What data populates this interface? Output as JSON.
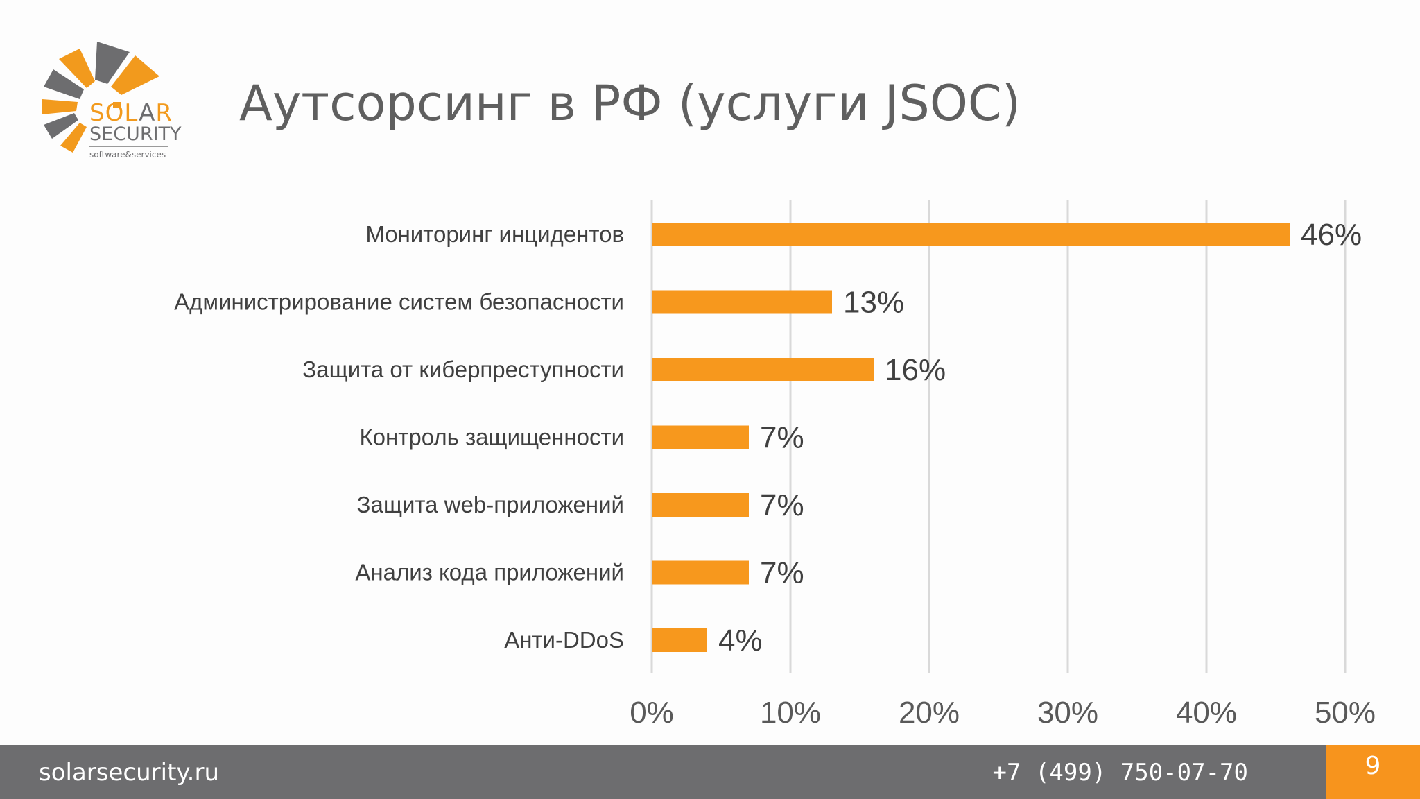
{
  "header": {
    "logo": {
      "text_solar": "SOL",
      "text_a": "A",
      "text_r": "R",
      "text_security": "SECURITY",
      "tagline": "software&services",
      "colors": {
        "orange": "#f29a1d",
        "gray": "#6d6d6f"
      }
    },
    "title": "Аутсорсинг в РФ (услуги JSOC)"
  },
  "chart_data": {
    "type": "bar",
    "orientation": "horizontal",
    "categories": [
      "Мониторинг инцидентов",
      "Администрирование систем безопасности",
      "Защита от киберпреступности",
      "Контроль защищенности",
      "Защита web-приложений",
      "Анализ кода приложений",
      "Анти-DDoS"
    ],
    "values": [
      46,
      13,
      16,
      7,
      7,
      7,
      4
    ],
    "data_labels": [
      "46%",
      "13%",
      "16%",
      "7%",
      "7%",
      "7%",
      "4%"
    ],
    "xticks": [
      "0%",
      "10%",
      "20%",
      "30%",
      "40%",
      "50%"
    ],
    "xlim": [
      0,
      50
    ],
    "grid": "vertical",
    "bar_color": "#f7981d",
    "title": "",
    "xlabel": "",
    "ylabel": ""
  },
  "footer": {
    "site": "solarsecurity.ru",
    "phone": "+7 (499) 750-07-70",
    "page": "9",
    "colors": {
      "bar": "#6d6d6f",
      "page_box": "#f7941d"
    }
  }
}
